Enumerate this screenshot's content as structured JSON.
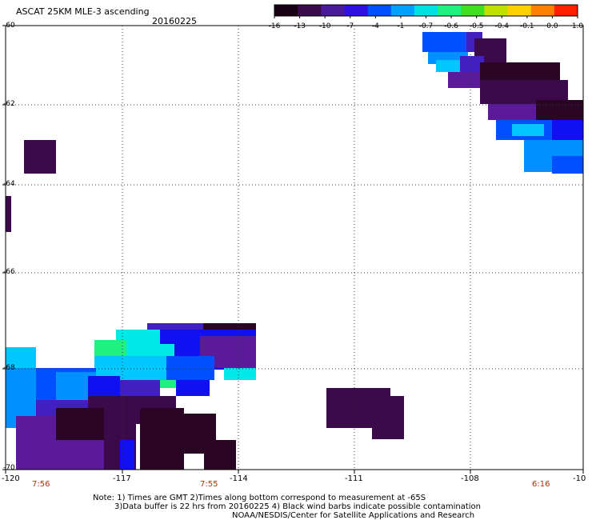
{
  "title": "ASCAT 25KM MLE-3 ascending",
  "date": "20160225",
  "colorbar": {
    "ticks": [
      "-16",
      "-13",
      "-10",
      "-7",
      "-4",
      "-1",
      "-0.7",
      "-0.6",
      "-0.5",
      "-0.4",
      "-0.1",
      "0.0",
      "1.0"
    ],
    "colors": [
      "#1a0012",
      "#3a0a4a",
      "#4a1a9a",
      "#3010e0",
      "#0050ff",
      "#00a0ff",
      "#00e0e0",
      "#20f080",
      "#40e020",
      "#c0e000",
      "#ffd000",
      "#ff8000",
      "#ff2000"
    ]
  },
  "x_labels": [
    "-120",
    "-117",
    "-114",
    "-111",
    "-108",
    "-10"
  ],
  "y_labels": [
    "-60",
    "-62",
    "-64",
    "-66",
    "-68",
    "-70"
  ],
  "times": [
    "7:56",
    "7:55",
    "6:16"
  ],
  "notes": [
    "Note: 1) Times are GMT 2)Times along bottom correspond to measurement at -65S",
    "3)Data buffer is 22 hrs from 20160225 4) Black wind barbs indicate possible contamination",
    "NOAA/NESDIS/Center for Satellite Applications and Research"
  ]
}
